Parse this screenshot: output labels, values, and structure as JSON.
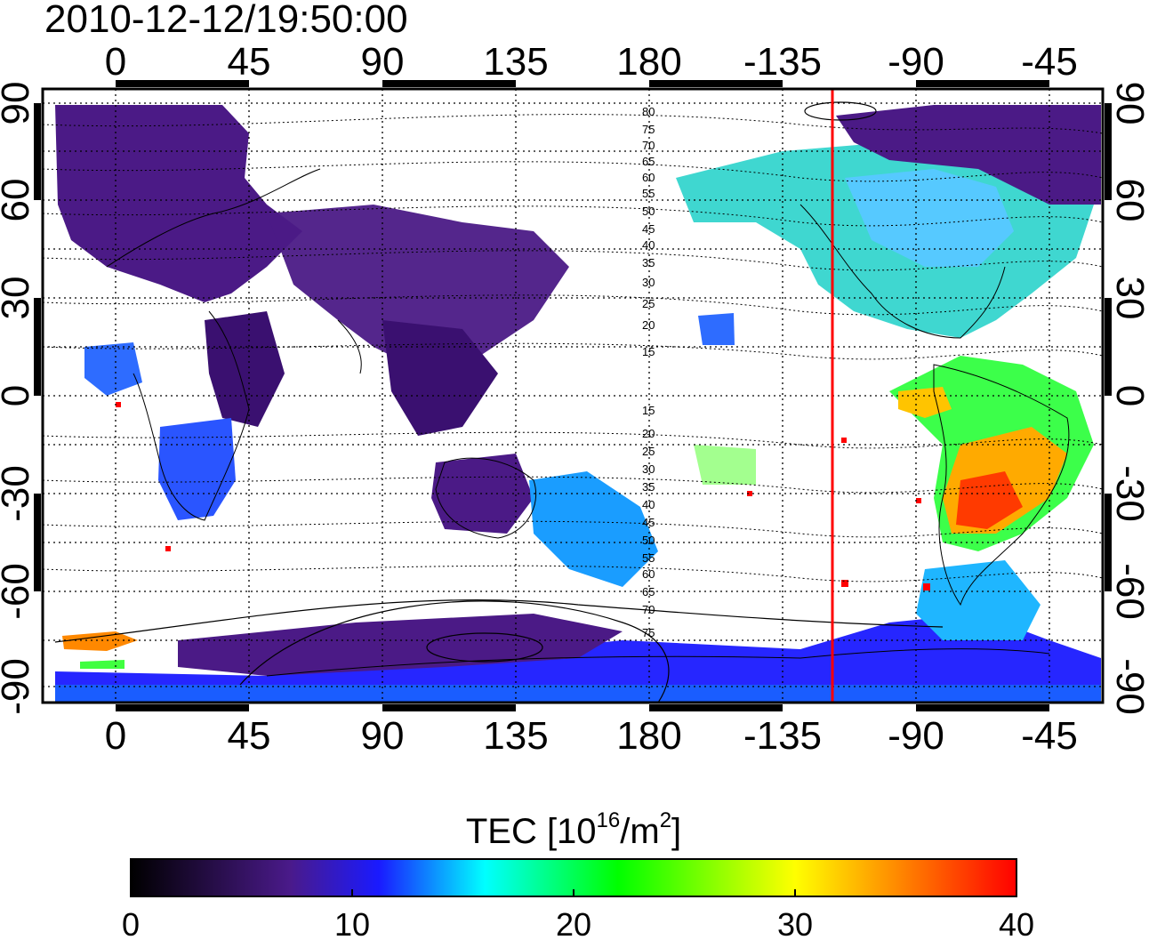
{
  "timestamp": "2010-12-12/19:50:00",
  "top_axis_ticks": [
    "0",
    "45",
    "90",
    "135",
    "180",
    "-135",
    "-90",
    "-45"
  ],
  "bottom_axis_ticks": [
    "0",
    "45",
    "90",
    "135",
    "180",
    "-135",
    "-90",
    "-45"
  ],
  "left_axis_ticks": [
    "90",
    "60",
    "30",
    "0",
    "-30",
    "-60",
    "-90"
  ],
  "right_axis_ticks": [
    "90",
    "60",
    "30",
    "0",
    "-30",
    "-60",
    "-90"
  ],
  "contour_labels_upper": [
    "80",
    "75",
    "70",
    "65",
    "60",
    "55",
    "50",
    "45",
    "40",
    "35",
    "30",
    "25",
    "20",
    "15"
  ],
  "contour_labels_lower": [
    "15",
    "20",
    "25",
    "30",
    "35",
    "40",
    "45",
    "50",
    "55",
    "60",
    "65",
    "70",
    "75"
  ],
  "colorbar": {
    "title_main": "TEC  [10",
    "title_exp1": "16",
    "title_mid": "/m",
    "title_exp2": "2",
    "title_end": "]",
    "ticks": [
      "0",
      "10",
      "20",
      "30",
      "40"
    ],
    "min": 0,
    "max": 40,
    "colors": [
      "#000000",
      "#5a1a8c",
      "#0000ff",
      "#00ffff",
      "#00ff00",
      "#ffff00",
      "#ff0000"
    ]
  },
  "map": {
    "terminator_longitude": "-118",
    "terminator_color": "#ff0000"
  }
}
